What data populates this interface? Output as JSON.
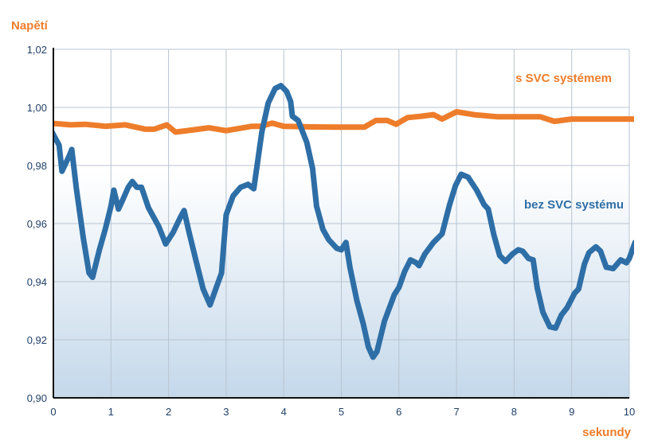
{
  "chart_data": {
    "type": "line",
    "ylabel": "Napětí",
    "xlabel": "sekundy",
    "xlim": [
      0,
      10
    ],
    "ylim": [
      0.9,
      1.02
    ],
    "x_ticks": [
      "0",
      "1",
      "2",
      "3",
      "4",
      "5",
      "6",
      "7",
      "8",
      "9",
      "10"
    ],
    "y_ticks": [
      "0,90",
      "0,92",
      "0,94",
      "0,96",
      "0,98",
      "1,00",
      "1,02"
    ],
    "grid": true,
    "series": [
      {
        "name": "s SVC systémem",
        "color": "#ee7d2b",
        "points": [
          [
            0,
            0.9945
          ],
          [
            0.3,
            0.994
          ],
          [
            0.55,
            0.9942
          ],
          [
            0.9,
            0.9935
          ],
          [
            1.25,
            0.994
          ],
          [
            1.6,
            0.9925
          ],
          [
            1.75,
            0.9925
          ],
          [
            1.97,
            0.994
          ],
          [
            2.12,
            0.9915
          ],
          [
            2.4,
            0.9922
          ],
          [
            2.7,
            0.993
          ],
          [
            3.0,
            0.992
          ],
          [
            3.45,
            0.9935
          ],
          [
            3.6,
            0.9935
          ],
          [
            3.8,
            0.9946
          ],
          [
            4.0,
            0.9935
          ],
          [
            4.5,
            0.9933
          ],
          [
            4.9,
            0.9932
          ],
          [
            5.4,
            0.9932
          ],
          [
            5.6,
            0.9955
          ],
          [
            5.8,
            0.9955
          ],
          [
            5.95,
            0.9942
          ],
          [
            6.15,
            0.9965
          ],
          [
            6.4,
            0.997
          ],
          [
            6.6,
            0.9975
          ],
          [
            6.75,
            0.996
          ],
          [
            7.0,
            0.9985
          ],
          [
            7.3,
            0.9975
          ],
          [
            7.7,
            0.9968
          ],
          [
            8.0,
            0.9968
          ],
          [
            8.45,
            0.9968
          ],
          [
            8.7,
            0.9952
          ],
          [
            9.0,
            0.996
          ],
          [
            9.5,
            0.996
          ],
          [
            10.1,
            0.996
          ]
        ]
      },
      {
        "name": "bez SVC systému",
        "color": "#2e6ea6",
        "points": [
          [
            -0.05,
            0.9925
          ],
          [
            0.1,
            0.987
          ],
          [
            0.15,
            0.978
          ],
          [
            0.28,
            0.9835
          ],
          [
            0.32,
            0.9855
          ],
          [
            0.4,
            0.972
          ],
          [
            0.52,
            0.955
          ],
          [
            0.62,
            0.943
          ],
          [
            0.68,
            0.9415
          ],
          [
            0.8,
            0.951
          ],
          [
            0.9,
            0.958
          ],
          [
            1.0,
            0.966
          ],
          [
            1.05,
            0.9715
          ],
          [
            1.13,
            0.965
          ],
          [
            1.2,
            0.968
          ],
          [
            1.3,
            0.9725
          ],
          [
            1.37,
            0.9745
          ],
          [
            1.45,
            0.9725
          ],
          [
            1.53,
            0.9725
          ],
          [
            1.65,
            0.9655
          ],
          [
            1.83,
            0.959
          ],
          [
            1.95,
            0.953
          ],
          [
            2.08,
            0.957
          ],
          [
            2.2,
            0.962
          ],
          [
            2.27,
            0.9645
          ],
          [
            2.35,
            0.9575
          ],
          [
            2.48,
            0.947
          ],
          [
            2.6,
            0.9375
          ],
          [
            2.72,
            0.932
          ],
          [
            2.82,
            0.9375
          ],
          [
            2.92,
            0.943
          ],
          [
            3.0,
            0.963
          ],
          [
            3.12,
            0.9695
          ],
          [
            3.25,
            0.9725
          ],
          [
            3.38,
            0.9735
          ],
          [
            3.48,
            0.972
          ],
          [
            3.62,
            0.9915
          ],
          [
            3.73,
            1.0015
          ],
          [
            3.85,
            1.0065
          ],
          [
            3.95,
            1.0075
          ],
          [
            4.05,
            1.0055
          ],
          [
            4.12,
            1.002
          ],
          [
            4.15,
            0.997
          ],
          [
            4.25,
            0.9955
          ],
          [
            4.4,
            0.988
          ],
          [
            4.5,
            0.979
          ],
          [
            4.57,
            0.966
          ],
          [
            4.68,
            0.958
          ],
          [
            4.78,
            0.9545
          ],
          [
            4.92,
            0.9515
          ],
          [
            5.0,
            0.951
          ],
          [
            5.08,
            0.9535
          ],
          [
            5.15,
            0.945
          ],
          [
            5.27,
            0.9335
          ],
          [
            5.38,
            0.9255
          ],
          [
            5.47,
            0.9175
          ],
          [
            5.55,
            0.914
          ],
          [
            5.62,
            0.916
          ],
          [
            5.75,
            0.9265
          ],
          [
            5.92,
            0.9355
          ],
          [
            6.0,
            0.938
          ],
          [
            6.1,
            0.9435
          ],
          [
            6.2,
            0.9475
          ],
          [
            6.3,
            0.9465
          ],
          [
            6.35,
            0.9455
          ],
          [
            6.45,
            0.9495
          ],
          [
            6.6,
            0.9535
          ],
          [
            6.75,
            0.9565
          ],
          [
            6.88,
            0.9665
          ],
          [
            6.98,
            0.973
          ],
          [
            7.08,
            0.977
          ],
          [
            7.2,
            0.976
          ],
          [
            7.35,
            0.9715
          ],
          [
            7.48,
            0.9665
          ],
          [
            7.55,
            0.965
          ],
          [
            7.65,
            0.956
          ],
          [
            7.75,
            0.949
          ],
          [
            7.85,
            0.947
          ],
          [
            7.97,
            0.9495
          ],
          [
            8.07,
            0.951
          ],
          [
            8.15,
            0.9505
          ],
          [
            8.25,
            0.948
          ],
          [
            8.33,
            0.9475
          ],
          [
            8.4,
            0.938
          ],
          [
            8.5,
            0.9295
          ],
          [
            8.62,
            0.9245
          ],
          [
            8.72,
            0.924
          ],
          [
            8.82,
            0.9285
          ],
          [
            8.92,
            0.931
          ],
          [
            9.05,
            0.936
          ],
          [
            9.12,
            0.9375
          ],
          [
            9.22,
            0.946
          ],
          [
            9.3,
            0.95
          ],
          [
            9.42,
            0.952
          ],
          [
            9.5,
            0.9505
          ],
          [
            9.6,
            0.945
          ],
          [
            9.72,
            0.9445
          ],
          [
            9.85,
            0.9475
          ],
          [
            9.95,
            0.9465
          ],
          [
            10.0,
            0.948
          ],
          [
            10.1,
            0.9535
          ]
        ]
      }
    ],
    "label_positions": "series names printed inside the plot area at the right, above each curve",
    "colors": {
      "gridlines": "#b8c4d0",
      "axis": "#111111",
      "tick_text": "#1f3f66",
      "title_text": "#ee7d2b",
      "background_top": "#ffffff",
      "background_bottom": "#c4d8ea"
    }
  }
}
